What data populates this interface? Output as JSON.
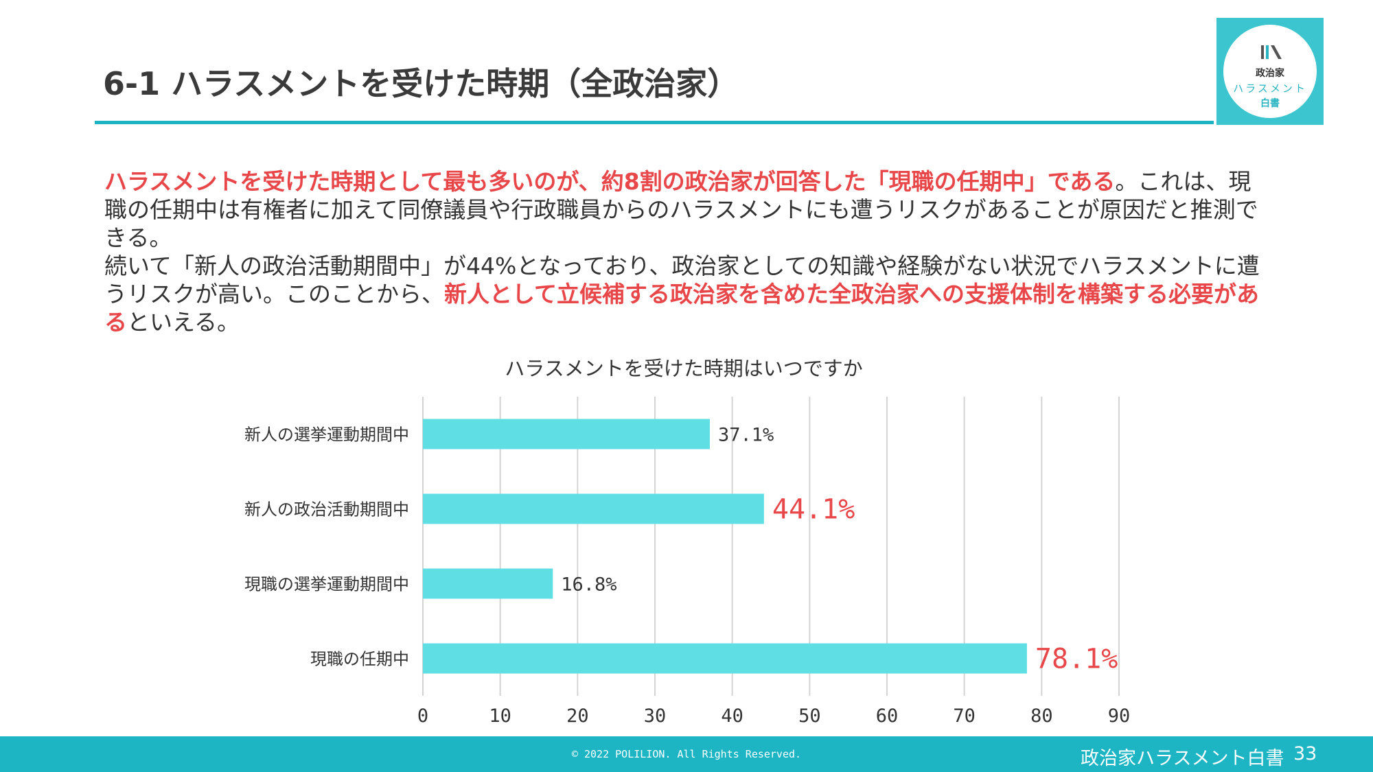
{
  "header": {
    "title": "6-1 ハラスメントを受けた時期（全政治家）"
  },
  "logo": {
    "line1": "政治家",
    "line2": "ハラスメント",
    "line3": "白書"
  },
  "body": {
    "p1_highlight": "ハラスメントを受けた時期として最も多いのが、約8割の政治家が回答した「現職の任期中」である",
    "p1_rest": "。これは、現職の任期中は有権者に加えて同僚議員や行政職員からのハラスメントにも遭うリスクがあることが原因だと推測できる。",
    "p2_lead": "続いて「新人の政治活動期間中」が44%となっており、政治家としての知識や経験がない状況でハラスメントに遭うリスクが高い。このことから、",
    "p2_highlight": "新人として立候補する政治家を含めた全政治家への支援体制を構築する必要がある",
    "p2_tail": "といえる。"
  },
  "chart_data": {
    "type": "bar",
    "orientation": "horizontal",
    "title": "ハラスメントを受けた時期はいつですか",
    "categories": [
      "新人の選挙運動期間中",
      "新人の政治活動期間中",
      "現職の選挙運動期間中",
      "現職の任期中"
    ],
    "values": [
      37.1,
      44.1,
      16.8,
      78.1
    ],
    "value_labels": [
      "37.1%",
      "44.1%",
      "16.8%",
      "78.1%"
    ],
    "highlighted": [
      false,
      true,
      false,
      true
    ],
    "xlim": [
      0,
      90
    ],
    "xticks": [
      0,
      10,
      20,
      30,
      40,
      50,
      60,
      70,
      80,
      90
    ],
    "grid": true,
    "xlabel": "",
    "ylabel": "",
    "colors": {
      "bar": "#5fdfe4",
      "highlight_label": "#e8474a",
      "label": "#333333",
      "grid": "#d4d4d4"
    }
  },
  "footer": {
    "copyright": "© 2022 POLILION. All Rights Reserved.",
    "brand": "政治家ハラスメント白書",
    "page": "33"
  },
  "colors": {
    "accent": "#1eb3c2",
    "highlight": "#e8474a"
  }
}
